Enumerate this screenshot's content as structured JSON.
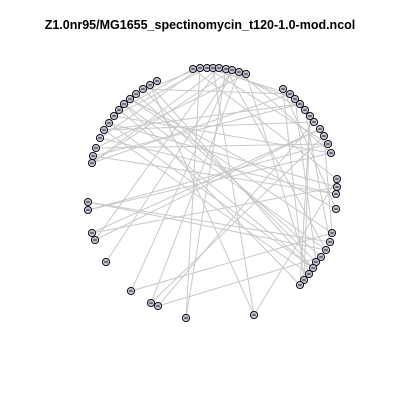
{
  "title": "Z1.0nr95/MG1655_spectinomycin_t120-1.0-mod.ncol",
  "colors": {
    "node_fill": "#c2c2d6",
    "node_stroke": "#000000",
    "edge": "#c8c8c8"
  },
  "node_label": "⊖",
  "graph": {
    "layout": "circle",
    "node_count": 55
  }
}
